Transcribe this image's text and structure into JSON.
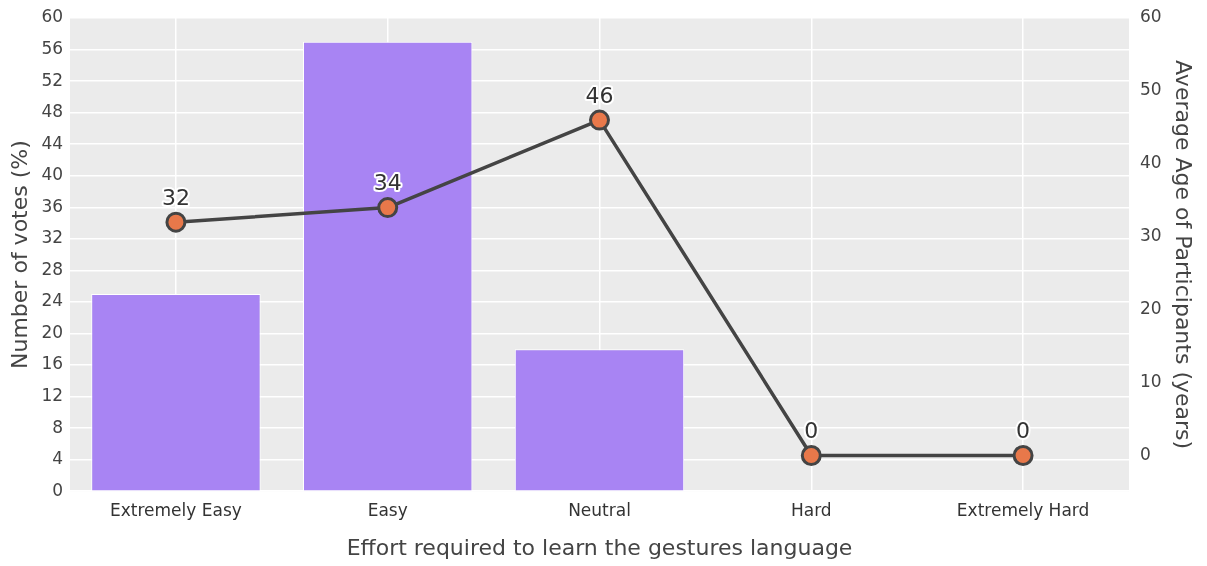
{
  "chart_data": {
    "type": "bar",
    "xlabel": "Effort required to learn the gestures language",
    "ylabel": "Number of votes (%)",
    "y2label": "Average Age of Participants (years)",
    "categories": [
      "Extremely Easy",
      "Easy",
      "Neutral",
      "Hard",
      "Extremely Hard"
    ],
    "series": [
      {
        "color": "#a884f3",
        "values": [
          25,
          57,
          18,
          0,
          0
        ]
      },
      {
        "type": "line",
        "axis": "y2",
        "color": "#444444",
        "marker": "circle",
        "line_style": "solid",
        "values": [
          32,
          34,
          46,
          0,
          0
        ],
        "value_labels": [
          "32",
          "34",
          "46",
          "0",
          "0"
        ]
      }
    ],
    "ylim": [
      0,
      60
    ],
    "yticks": [
      0,
      4,
      8,
      12,
      16,
      20,
      24,
      28,
      32,
      36,
      40,
      44,
      48,
      52,
      56,
      60
    ],
    "y2lim": [
      -4.9,
      60
    ],
    "y2ticks": [
      0,
      10,
      20,
      30,
      40,
      50,
      60
    ],
    "grid": true,
    "legend": false
  }
}
